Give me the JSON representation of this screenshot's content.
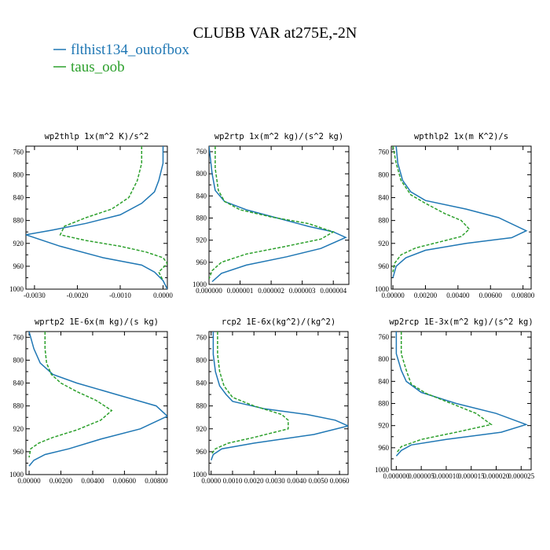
{
  "title": "CLUBB VAR at275E,-2N",
  "colors": {
    "blue": "#1f77b4",
    "green": "#2ca02c"
  },
  "legend": [
    {
      "label": "flthist134_outofbox",
      "color": "#1f77b4",
      "dash": "solid"
    },
    {
      "label": "taus_oob",
      "color": "#2ca02c",
      "dash": "dashed"
    }
  ],
  "chart_data": [
    {
      "type": "line",
      "title": "wp2thlp  1x(m^2 K)/s^2",
      "ylim": [
        1000,
        750
      ],
      "yticks": [
        "760",
        "800",
        "840",
        "880",
        "920",
        "960",
        "1000"
      ],
      "xlim": [
        -0.0032,
        0.0001
      ],
      "xticks": [
        "-0.0030",
        "-0.0020",
        "-0.0010",
        "0.0000"
      ],
      "series": [
        {
          "name": "flthist134_outofbox",
          "color": "#1f77b4",
          "dash": "solid",
          "x": [
            0.0,
            0.0,
            -0.0001,
            -0.0002,
            -0.0005,
            -0.001,
            -0.0018,
            -0.0026,
            -0.0032,
            -0.0024,
            -0.0014,
            -0.0005,
            -0.0002,
            0.0,
            0.0001
          ],
          "y": [
            750,
            780,
            810,
            830,
            850,
            870,
            885,
            897,
            905,
            925,
            945,
            958,
            970,
            985,
            1000
          ]
        },
        {
          "name": "taus_oob",
          "color": "#2ca02c",
          "dash": "dashed",
          "x": [
            -0.0005,
            -0.0005,
            -0.0006,
            -0.0008,
            -0.0012,
            -0.0018,
            -0.0023,
            -0.0024,
            -0.0018,
            -0.001,
            -0.0004,
            0.0,
            0.0001,
            -0.0001,
            0.0
          ],
          "y": [
            750,
            780,
            810,
            840,
            860,
            875,
            890,
            905,
            915,
            925,
            935,
            945,
            955,
            970,
            985
          ]
        }
      ]
    },
    {
      "type": "line",
      "title": "wp2rtp  1x(m^2 kg)/(s^2 kg)",
      "ylim": [
        1000,
        750
      ],
      "yticks": [
        "760",
        "800",
        "840",
        "880",
        "920",
        "960",
        "1000"
      ],
      "xlim": [
        0,
        4.5e-06
      ],
      "xticks": [
        "0.000000",
        "0.000001",
        "0.000002",
        "0.000003",
        "0.000004"
      ],
      "series": [
        {
          "name": "flthist134_outofbox",
          "color": "#1f77b4",
          "dash": "solid",
          "x": [
            0.0,
            1e-07,
            2e-07,
            5e-07,
            1.2e-06,
            2.2e-06,
            3.2e-06,
            4e-06,
            4.4e-06,
            3.6e-06,
            2.5e-06,
            1.2e-06,
            4e-07,
            1e-07
          ],
          "y": [
            750,
            800,
            830,
            850,
            865,
            880,
            895,
            905,
            915,
            935,
            950,
            965,
            980,
            995
          ]
        },
        {
          "name": "taus_oob",
          "color": "#2ca02c",
          "dash": "dashed",
          "x": [
            2e-07,
            2e-07,
            3e-07,
            5e-07,
            1e-06,
            2e-06,
            3.2e-06,
            4e-06,
            3.6e-06,
            2.4e-06,
            1.2e-06,
            4e-07,
            1e-07,
            0.0
          ],
          "y": [
            750,
            790,
            830,
            850,
            865,
            878,
            890,
            905,
            918,
            932,
            945,
            960,
            975,
            990
          ]
        }
      ]
    },
    {
      "type": "line",
      "title": "wpthlp2  1x(m K^2)/s",
      "ylim": [
        1000,
        750
      ],
      "yticks": [
        "760",
        "800",
        "840",
        "880",
        "920",
        "960",
        "1000"
      ],
      "xlim": [
        -0.0001,
        0.0085
      ],
      "xticks": [
        "0.00000",
        "0.00200",
        "0.00400",
        "0.00600",
        "0.00800"
      ],
      "series": [
        {
          "name": "flthist134_outofbox",
          "color": "#1f77b4",
          "dash": "solid",
          "x": [
            0.0002,
            0.0003,
            0.0006,
            0.0011,
            0.002,
            0.0045,
            0.0065,
            0.0082,
            0.0073,
            0.0045,
            0.002,
            0.0008,
            0.0002,
            0.0
          ],
          "y": [
            750,
            780,
            810,
            830,
            845,
            860,
            875,
            898,
            910,
            920,
            932,
            945,
            960,
            980
          ]
        },
        {
          "name": "taus_oob",
          "color": "#2ca02c",
          "dash": "dashed",
          "x": [
            0.0,
            0.0002,
            0.0005,
            0.0011,
            0.002,
            0.0032,
            0.0042,
            0.0047,
            0.0042,
            0.0028,
            0.0014,
            0.0005,
            0.0001,
            0.0
          ],
          "y": [
            750,
            780,
            810,
            835,
            850,
            868,
            880,
            895,
            908,
            918,
            928,
            940,
            955,
            970
          ]
        }
      ]
    },
    {
      "type": "line",
      "title": "wprtp2  1E-6x(m kg)/(s kg)",
      "ylim": [
        1000,
        750
      ],
      "yticks": [
        "760",
        "800",
        "840",
        "880",
        "920",
        "960",
        "1000"
      ],
      "xlim": [
        -0.0002,
        0.0087
      ],
      "xticks": [
        "0.00000",
        "0.00200",
        "0.00400",
        "0.00600",
        "0.00800"
      ],
      "series": [
        {
          "name": "flthist134_outofbox",
          "color": "#1f77b4",
          "dash": "solid",
          "x": [
            0.0,
            0.0003,
            0.0007,
            0.0015,
            0.003,
            0.0055,
            0.008,
            0.0087,
            0.007,
            0.0045,
            0.0025,
            0.001,
            0.0003,
            0.0
          ],
          "y": [
            750,
            780,
            805,
            825,
            840,
            860,
            880,
            898,
            920,
            938,
            955,
            965,
            975,
            985
          ]
        },
        {
          "name": "taus_oob",
          "color": "#2ca02c",
          "dash": "dashed",
          "x": [
            0.001,
            0.001,
            0.0011,
            0.0014,
            0.002,
            0.003,
            0.0042,
            0.0052,
            0.0045,
            0.003,
            0.0015,
            0.0006,
            0.0001,
            0.0
          ],
          "y": [
            750,
            780,
            805,
            825,
            840,
            855,
            870,
            888,
            905,
            922,
            935,
            945,
            955,
            970
          ]
        }
      ]
    },
    {
      "type": "line",
      "title": "rcp2  1E-6x(kg^2)/(kg^2)",
      "ylim": [
        1000,
        750
      ],
      "yticks": [
        "760",
        "800",
        "840",
        "880",
        "920",
        "960",
        "1000"
      ],
      "xlim": [
        -0.0001,
        0.0064
      ],
      "xticks": [
        "0.0000",
        "0.0010",
        "0.0020",
        "0.0030",
        "0.0040",
        "0.0050",
        "0.0060"
      ],
      "series": [
        {
          "name": "flthist134_outofbox",
          "color": "#1f77b4",
          "dash": "solid",
          "x": [
            0.0001,
            0.0001,
            0.0002,
            0.0004,
            0.0007,
            0.001,
            0.0025,
            0.0045,
            0.0058,
            0.0064,
            0.0048,
            0.002,
            0.0005,
            0.0001,
            0.0
          ],
          "y": [
            750,
            790,
            820,
            845,
            860,
            872,
            885,
            895,
            905,
            915,
            930,
            945,
            955,
            965,
            975
          ]
        },
        {
          "name": "taus_oob",
          "color": "#2ca02c",
          "dash": "dashed",
          "x": [
            0.0003,
            0.0003,
            0.0004,
            0.0006,
            0.001,
            0.002,
            0.0033,
            0.0036,
            0.0036,
            0.002,
            0.0008,
            0.0002,
            0.0
          ],
          "y": [
            750,
            790,
            820,
            845,
            865,
            880,
            895,
            905,
            920,
            935,
            945,
            955,
            965
          ]
        }
      ]
    },
    {
      "type": "line",
      "title": "wp2rcp  1E-3x(m^2 kg)/(s^2 kg)",
      "ylim": [
        1000,
        750
      ],
      "yticks": [
        "760",
        "800",
        "840",
        "880",
        "920",
        "960",
        "1000"
      ],
      "xlim": [
        -1e-06,
        2.7e-05
      ],
      "xticks": [
        "0.000000",
        "0.000005",
        "0.000010",
        "0.000015",
        "0.000020",
        "0.000025"
      ],
      "series": [
        {
          "name": "flthist134_outofbox",
          "color": "#1f77b4",
          "dash": "solid",
          "x": [
            0.0,
            0.0,
            1e-06,
            2e-06,
            5e-06,
            1.2e-05,
            2e-05,
            2.6e-05,
            2.1e-05,
            1e-05,
            3e-06,
            1e-06,
            0.0
          ],
          "y": [
            750,
            790,
            820,
            840,
            860,
            880,
            898,
            918,
            932,
            945,
            955,
            965,
            975
          ]
        },
        {
          "name": "taus_oob",
          "color": "#2ca02c",
          "dash": "dashed",
          "x": [
            1e-06,
            1e-06,
            2e-06,
            3e-06,
            6e-06,
            1.1e-05,
            1.6e-05,
            1.9e-05,
            1.2e-05,
            5e-06,
            1e-06,
            0.0
          ],
          "y": [
            750,
            790,
            820,
            845,
            862,
            880,
            898,
            918,
            932,
            945,
            958,
            970
          ]
        }
      ]
    }
  ]
}
